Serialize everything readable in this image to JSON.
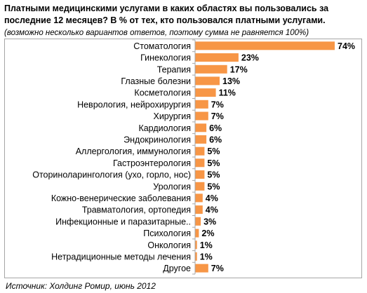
{
  "title": "Платными медицинскими услугами в каких областях вы пользовались за последние 12 месяцев? В % от тех, кто пользовался платными услугами.",
  "subtitle": "(возможно несколько вариантов ответов, поэтому сумма не равняется 100%)",
  "source": "Источник: Холдинг Ромир, июнь 2012",
  "colors": {
    "bar": "#f79646",
    "axis": "#a6a6a6",
    "frame": "#a6a6a6"
  },
  "chart_data": {
    "type": "bar",
    "orientation": "horizontal",
    "title": "Платными медицинскими услугами в каких областях вы пользовались за последние 12 месяцев? В % от тех, кто пользовался платными услугами.",
    "xlabel": "",
    "ylabel": "",
    "xlim": [
      0,
      74
    ],
    "grid": false,
    "unit": "%",
    "categories": [
      "Стоматология",
      "Гинекология",
      "Терапия",
      "Глазные болезни",
      "Косметология",
      "Неврология, нейрохирургия",
      "Хирургия",
      "Кардиология",
      "Эндокринология",
      "Аллергология, иммунология",
      "Гастроэнтерология",
      "Оториноларингология (ухо, горло, нос)",
      "Урология",
      "Кожно-венерические заболевания",
      "Травматология, ортопедия",
      "Инфекционные и паразитарные..",
      "Психология",
      "Онкология",
      "Нетрадиционные методы лечения",
      "Другое"
    ],
    "values": [
      74,
      23,
      17,
      13,
      11,
      7,
      7,
      6,
      6,
      5,
      5,
      5,
      5,
      4,
      4,
      3,
      2,
      1,
      1,
      7
    ],
    "value_labels": [
      "74%",
      "23%",
      "17%",
      "13%",
      "11%",
      "7%",
      "7%",
      "6%",
      "6%",
      "5%",
      "5%",
      "5%",
      "5%",
      "4%",
      "4%",
      "3%",
      "2%",
      "1%",
      "1%",
      "7%"
    ]
  }
}
